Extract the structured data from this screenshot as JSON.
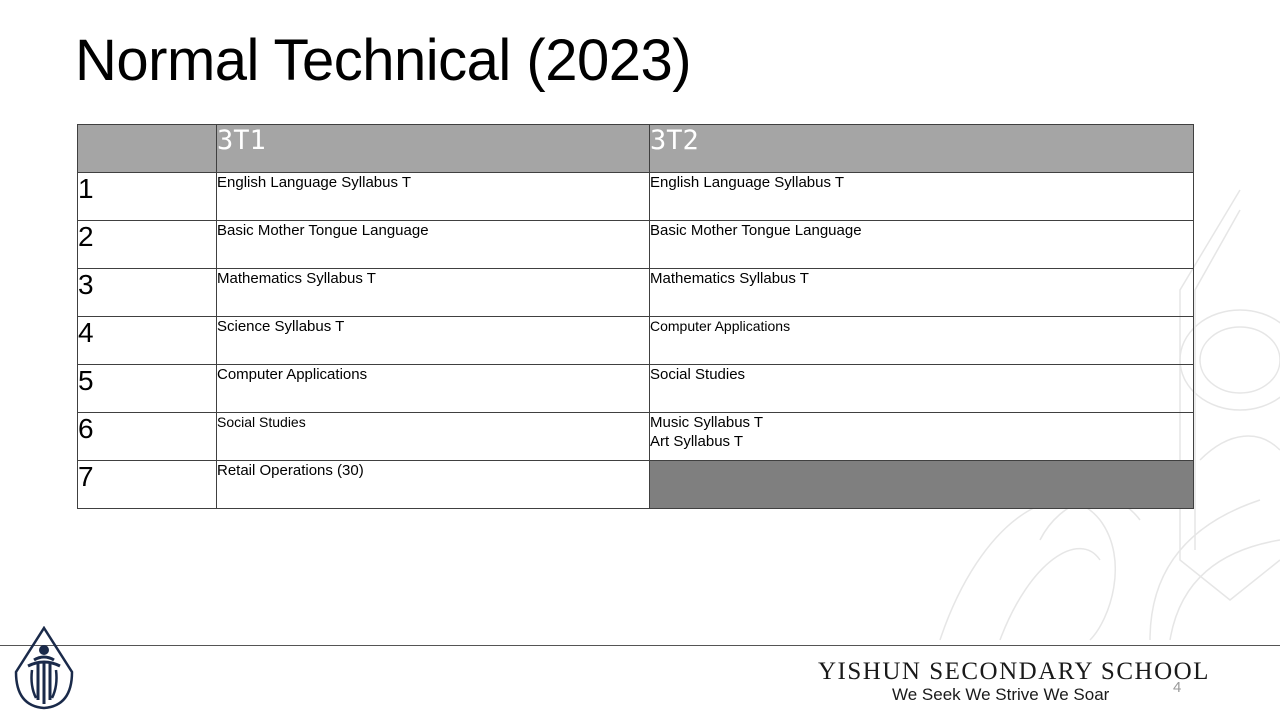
{
  "slide": {
    "title": "Normal Technical (2023)",
    "page_number": "4"
  },
  "table": {
    "header": [
      "",
      "3T1",
      "3T2"
    ],
    "rows": [
      {
        "num": "1",
        "c1": [
          "English Language Syllabus T"
        ],
        "c2": [
          "English Language Syllabus T"
        ]
      },
      {
        "num": "2",
        "c1": [
          "Basic Mother Tongue Language"
        ],
        "c2": [
          "Basic Mother Tongue Language"
        ]
      },
      {
        "num": "3",
        "c1": [
          "Mathematics Syllabus T"
        ],
        "c2": [
          "Mathematics Syllabus T"
        ]
      },
      {
        "num": "4",
        "c1": [
          "Science Syllabus T"
        ],
        "c2": [
          "Computer Applications"
        ]
      },
      {
        "num": "5",
        "c1": [
          "Computer Applications"
        ],
        "c2": [
          "Social Studies"
        ]
      },
      {
        "num": "6",
        "c1": [
          "Social Studies"
        ],
        "c2": [
          "Music Syllabus T",
          "Art Syllabus T"
        ]
      },
      {
        "num": "7",
        "c1": [
          "Retail Operations (30)"
        ],
        "c2": []
      }
    ]
  },
  "footer": {
    "school_name": "YISHUN SECONDARY SCHOOL",
    "motto": "We Seek We Strive We Soar",
    "logo_icon": "school-crest-icon"
  },
  "colors": {
    "header_bg": "#a5a5a5",
    "empty_cell_bg": "#7f7f7f"
  }
}
